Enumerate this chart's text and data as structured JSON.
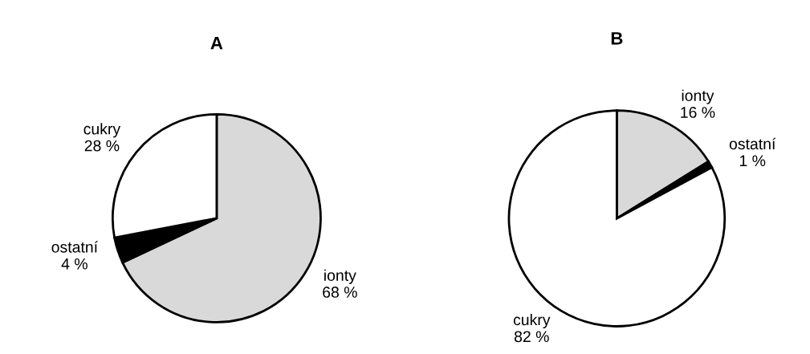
{
  "chart_data": [
    {
      "type": "pie",
      "title": "A",
      "categories": [
        "ionty",
        "ostatní",
        "cukry"
      ],
      "values": [
        68,
        4,
        28
      ],
      "value_labels": [
        "68 %",
        "4 %",
        "28 %"
      ],
      "colors": [
        "#d9d9d9",
        "#000000",
        "#ffffff"
      ]
    },
    {
      "type": "pie",
      "title": "B",
      "categories": [
        "ionty",
        "ostatní",
        "cukry"
      ],
      "values": [
        16,
        1,
        82
      ],
      "value_labels": [
        "16 %",
        "1 %",
        "82 %"
      ],
      "colors": [
        "#d9d9d9",
        "#000000",
        "#ffffff"
      ]
    }
  ]
}
